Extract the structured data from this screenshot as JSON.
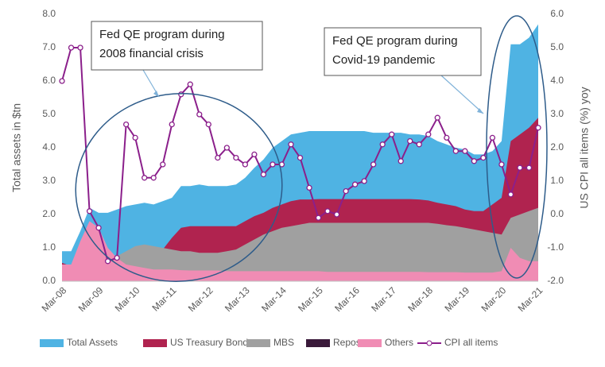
{
  "chart_data": {
    "type": "area",
    "y_label": "Total assets in $tn",
    "y2_label": "US CPI all items (%) yoy",
    "annotations": [
      {
        "lines": [
          "Fed QE program during",
          "2008 financial crisis"
        ]
      },
      {
        "lines": [
          "Fed QE program during",
          "Covid-19 pandemic"
        ]
      }
    ],
    "categories": [
      "Mar-08",
      null,
      null,
      null,
      "Mar-09",
      null,
      null,
      null,
      "Mar-10",
      null,
      null,
      null,
      "Mar-11",
      null,
      null,
      null,
      "Mar-12",
      null,
      null,
      null,
      "Mar-13",
      null,
      null,
      null,
      "Mar-14",
      null,
      null,
      null,
      "Mar-15",
      null,
      null,
      null,
      "Mar-16",
      null,
      null,
      null,
      "Mar-17",
      null,
      null,
      null,
      "Mar-18",
      null,
      null,
      null,
      "Mar-19",
      null,
      null,
      null,
      "Mar-20",
      null,
      null,
      null,
      "Mar-21"
    ],
    "series": [
      {
        "name": "Total Assets",
        "color": "#4fb3e3",
        "values": [
          0.9,
          0.9,
          1.5,
          2.2,
          2.05,
          2.05,
          2.15,
          2.25,
          2.3,
          2.35,
          2.3,
          2.4,
          2.5,
          2.85,
          2.85,
          2.9,
          2.85,
          2.85,
          2.85,
          2.9,
          3.1,
          3.4,
          3.65,
          4.0,
          4.2,
          4.4,
          4.45,
          4.5,
          4.5,
          4.5,
          4.5,
          4.5,
          4.5,
          4.5,
          4.45,
          4.45,
          4.45,
          4.45,
          4.4,
          4.4,
          4.35,
          4.2,
          4.1,
          4.0,
          3.95,
          3.8,
          3.8,
          3.9,
          4.2,
          7.1,
          7.1,
          7.3,
          7.7
        ]
      },
      {
        "name": "US Treasury Bonds",
        "color": "#b0234f",
        "values": [
          0.55,
          0.45,
          0.45,
          0.5,
          0.5,
          0.6,
          0.75,
          0.75,
          0.75,
          0.75,
          0.8,
          0.95,
          1.3,
          1.6,
          1.65,
          1.65,
          1.65,
          1.65,
          1.65,
          1.65,
          1.8,
          1.95,
          2.05,
          2.2,
          2.3,
          2.4,
          2.45,
          2.45,
          2.46,
          2.46,
          2.46,
          2.46,
          2.46,
          2.46,
          2.46,
          2.46,
          2.46,
          2.46,
          2.46,
          2.45,
          2.42,
          2.35,
          2.3,
          2.25,
          2.15,
          2.1,
          2.1,
          2.3,
          2.5,
          4.2,
          4.4,
          4.6,
          4.9
        ]
      },
      {
        "name": "MBS",
        "color": "#a0a0a0",
        "values": [
          0,
          0,
          0,
          0,
          0.25,
          0.5,
          0.75,
          0.9,
          1.05,
          1.1,
          1.05,
          1.0,
          0.95,
          0.9,
          0.9,
          0.85,
          0.85,
          0.85,
          0.9,
          0.95,
          1.1,
          1.25,
          1.4,
          1.5,
          1.6,
          1.65,
          1.7,
          1.75,
          1.75,
          1.75,
          1.75,
          1.75,
          1.75,
          1.75,
          1.75,
          1.75,
          1.75,
          1.75,
          1.75,
          1.75,
          1.75,
          1.72,
          1.68,
          1.65,
          1.6,
          1.55,
          1.5,
          1.45,
          1.4,
          1.9,
          2.0,
          2.1,
          2.2
        ]
      },
      {
        "name": "Repos",
        "color": "#3a1a3a",
        "values": [
          0.1,
          0.1,
          0.1,
          0.05,
          0,
          0,
          0,
          0,
          0,
          0,
          0,
          0,
          0,
          0,
          0,
          0,
          0,
          0,
          0,
          0,
          0,
          0,
          0,
          0,
          0,
          0,
          0,
          0,
          0,
          0,
          0,
          0,
          0,
          0,
          0,
          0,
          0,
          0,
          0,
          0,
          0,
          0,
          0,
          0,
          0,
          0,
          0,
          0.2,
          0.2,
          0,
          0,
          0,
          0
        ]
      },
      {
        "name": "Others",
        "color": "#f08cb4",
        "values": [
          0.5,
          0.5,
          1.2,
          1.8,
          1.6,
          1.0,
          0.7,
          0.5,
          0.45,
          0.4,
          0.35,
          0.35,
          0.35,
          0.33,
          0.32,
          0.32,
          0.32,
          0.32,
          0.3,
          0.3,
          0.3,
          0.3,
          0.3,
          0.3,
          0.3,
          0.3,
          0.3,
          0.3,
          0.3,
          0.28,
          0.28,
          0.28,
          0.28,
          0.28,
          0.28,
          0.28,
          0.28,
          0.28,
          0.28,
          0.28,
          0.27,
          0.27,
          0.27,
          0.27,
          0.26,
          0.26,
          0.26,
          0.26,
          0.3,
          1.0,
          0.7,
          0.6,
          0.6
        ]
      },
      {
        "name": "CPI all items",
        "color": "#8b1f8b",
        "axis": "y2",
        "values": [
          4.0,
          5.0,
          5.0,
          0.1,
          -0.4,
          -1.4,
          -1.3,
          2.7,
          2.3,
          1.1,
          1.1,
          1.5,
          2.7,
          3.6,
          3.9,
          3.0,
          2.7,
          1.7,
          2.0,
          1.7,
          1.5,
          1.8,
          1.2,
          1.5,
          1.5,
          2.1,
          1.7,
          0.8,
          -0.1,
          0.1,
          0.0,
          0.7,
          0.9,
          1.0,
          1.5,
          2.1,
          2.4,
          1.6,
          2.2,
          2.1,
          2.4,
          2.9,
          2.3,
          1.9,
          1.9,
          1.6,
          1.7,
          2.3,
          1.5,
          0.6,
          1.4,
          1.4,
          2.6
        ]
      }
    ],
    "ylim": [
      0,
      8
    ],
    "yticks": [
      {
        "value": 0,
        "label": "0.0"
      },
      {
        "value": 1,
        "label": "1.0"
      },
      {
        "value": 2,
        "label": "2.0"
      },
      {
        "value": 3,
        "label": "3.0"
      },
      {
        "value": 4,
        "label": "4.0"
      },
      {
        "value": 5,
        "label": "5.0"
      },
      {
        "value": 6,
        "label": "6.0"
      },
      {
        "value": 7,
        "label": "7.0"
      },
      {
        "value": 8,
        "label": "8.0"
      }
    ],
    "y2lim": [
      -2,
      6
    ],
    "y2ticks": [
      {
        "value": -2,
        "label": "-2.0"
      },
      {
        "value": -1,
        "label": "-1.0"
      },
      {
        "value": 0,
        "label": "0.0"
      },
      {
        "value": 1,
        "label": "1.0"
      },
      {
        "value": 2,
        "label": "2.0"
      },
      {
        "value": 3,
        "label": "3.0"
      },
      {
        "value": 4,
        "label": "4.0"
      },
      {
        "value": 5,
        "label": "5.0"
      },
      {
        "value": 6,
        "label": "6.0"
      }
    ],
    "legend": "bottom"
  }
}
